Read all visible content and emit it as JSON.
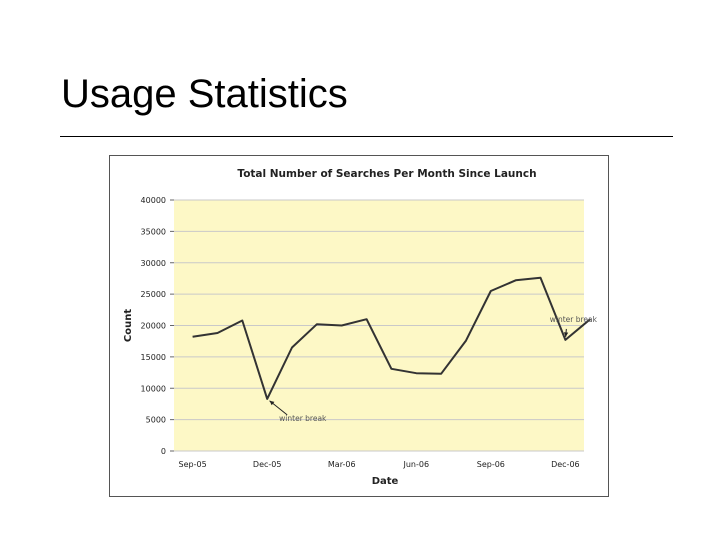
{
  "slide": {
    "title": "Usage Statistics"
  },
  "colors": {
    "plot_background": "#fdf8c6",
    "line": "#333333",
    "grid": "#c9c9c9",
    "text": "#222222"
  },
  "chart_data": {
    "type": "line",
    "title": "Total Number of Searches Per Month Since Launch",
    "xlabel": "Date",
    "ylabel": "Count",
    "ylim": [
      0,
      40000
    ],
    "y_ticks": [
      0,
      5000,
      10000,
      15000,
      20000,
      25000,
      30000,
      35000,
      40000
    ],
    "x_tick_labels": [
      "Sep-05",
      "Dec-05",
      "Mar-06",
      "Jun-06",
      "Sep-06",
      "Dec-06"
    ],
    "grid": "horizontal",
    "x": [
      "Sep-05",
      "Oct-05",
      "Nov-05",
      "Dec-05",
      "Jan-06",
      "Feb-06",
      "Mar-06",
      "Apr-06",
      "May-06",
      "Jun-06",
      "Jul-06",
      "Aug-06",
      "Sep-06",
      "Oct-06",
      "Nov-06",
      "Dec-06",
      "Jan-07"
    ],
    "series": [
      {
        "values": [
          18200,
          18800,
          20800,
          8300,
          16500,
          20200,
          20000,
          21000,
          13100,
          12400,
          12300,
          17600,
          25500,
          27200,
          27600,
          17700,
          21000
        ]
      }
    ],
    "annotations": [
      {
        "text": "winter break",
        "x": "Dec-05",
        "y": 8300
      },
      {
        "text": "winter break",
        "x": "Dec-06",
        "y": 17700
      }
    ]
  }
}
